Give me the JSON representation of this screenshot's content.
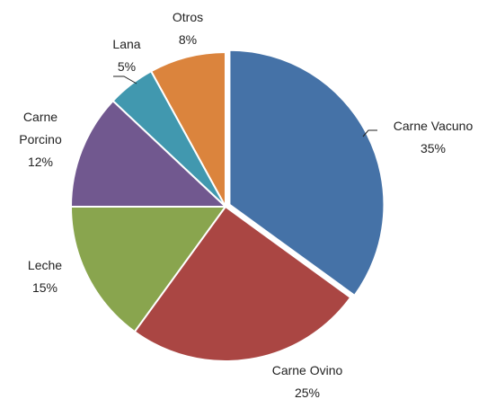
{
  "chart_data": {
    "type": "pie",
    "categories": [
      "Carne Vacuno",
      "Carne Ovino",
      "Leche",
      "Carne Porcino",
      "Lana",
      "Otros"
    ],
    "values": [
      35,
      25,
      15,
      12,
      5,
      8
    ],
    "value_labels": [
      "35%",
      "25%",
      "15%",
      "12%",
      "5%",
      "8%"
    ],
    "colors": [
      "#4572a7",
      "#aa4643",
      "#89a54e",
      "#71588f",
      "#4198af",
      "#db843d"
    ]
  }
}
